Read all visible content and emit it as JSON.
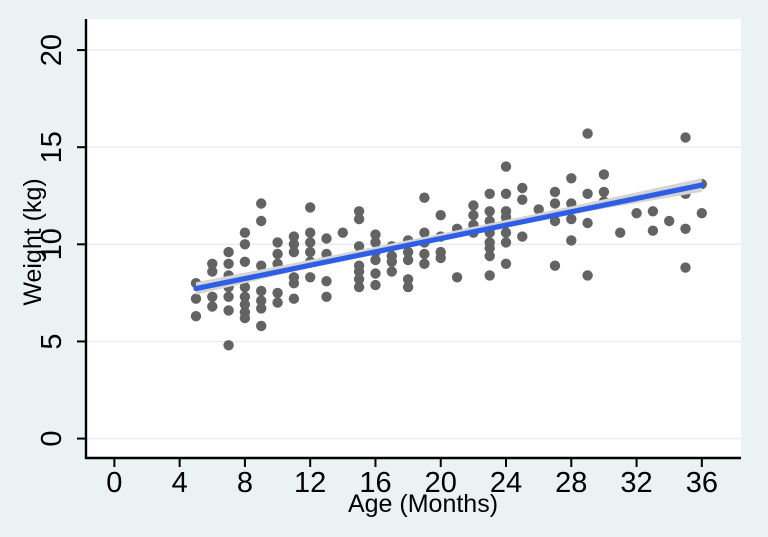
{
  "figure": {
    "background_color": "#EAF2F3",
    "plot_background": "#FFFFFF",
    "grid_color": "#E2EEF0",
    "axis_color": "#000000",
    "tick_label_color": "#000000"
  },
  "chart_data": {
    "type": "scatter",
    "title": "",
    "xlabel": "Age (Months)",
    "ylabel": "Weight (kg)",
    "x_ticks": [
      0,
      4,
      8,
      12,
      16,
      20,
      24,
      28,
      32,
      36
    ],
    "y_ticks": [
      0,
      5,
      10,
      15,
      20
    ],
    "xlim": [
      -1.8,
      38.4
    ],
    "ylim": [
      -1.0,
      21.6
    ],
    "grid": "horizontal-only",
    "legend": "none",
    "point_color": "#636363",
    "fit_line_color": "#2E5EE6",
    "ci_band_color": "#D4D4D4",
    "points": [
      [
        5,
        8.0
      ],
      [
        5,
        7.2
      ],
      [
        5,
        6.3
      ],
      [
        6,
        9.0
      ],
      [
        6,
        8.6
      ],
      [
        6,
        7.3
      ],
      [
        6,
        6.8
      ],
      [
        7,
        9.6
      ],
      [
        7,
        9.0
      ],
      [
        7,
        8.4
      ],
      [
        7,
        7.8
      ],
      [
        7,
        7.3
      ],
      [
        7,
        6.6
      ],
      [
        7,
        4.8
      ],
      [
        8,
        10.6
      ],
      [
        8,
        10.0
      ],
      [
        8,
        9.1
      ],
      [
        8,
        7.8
      ],
      [
        8,
        7.3
      ],
      [
        8,
        6.9
      ],
      [
        8,
        6.5
      ],
      [
        8,
        6.2
      ],
      [
        9,
        12.1
      ],
      [
        9,
        11.2
      ],
      [
        9,
        8.9
      ],
      [
        9,
        7.6
      ],
      [
        9,
        7.1
      ],
      [
        9,
        6.7
      ],
      [
        9,
        5.8
      ],
      [
        10,
        10.1
      ],
      [
        10,
        9.5
      ],
      [
        10,
        9.0
      ],
      [
        10,
        7.5
      ],
      [
        10,
        7.0
      ],
      [
        11,
        10.4
      ],
      [
        11,
        10.0
      ],
      [
        11,
        9.6
      ],
      [
        11,
        8.3
      ],
      [
        11,
        8.0
      ],
      [
        11,
        7.2
      ],
      [
        12,
        11.9
      ],
      [
        12,
        10.6
      ],
      [
        12,
        10.1
      ],
      [
        12,
        9.6
      ],
      [
        12,
        9.1
      ],
      [
        12,
        8.3
      ],
      [
        13,
        10.3
      ],
      [
        13,
        9.5
      ],
      [
        13,
        8.1
      ],
      [
        13,
        7.3
      ],
      [
        14,
        10.6
      ],
      [
        15,
        11.7
      ],
      [
        15,
        11.3
      ],
      [
        15,
        9.9
      ],
      [
        15,
        8.9
      ],
      [
        15,
        8.6
      ],
      [
        15,
        8.2
      ],
      [
        15,
        7.8
      ],
      [
        16,
        10.5
      ],
      [
        16,
        10.1
      ],
      [
        16,
        9.6
      ],
      [
        16,
        9.2
      ],
      [
        16,
        8.5
      ],
      [
        16,
        7.9
      ],
      [
        17,
        9.9
      ],
      [
        17,
        9.4
      ],
      [
        17,
        9.1
      ],
      [
        17,
        8.6
      ],
      [
        18,
        10.2
      ],
      [
        18,
        9.6
      ],
      [
        18,
        9.2
      ],
      [
        18,
        8.2
      ],
      [
        18,
        7.8
      ],
      [
        19,
        12.4
      ],
      [
        19,
        10.6
      ],
      [
        19,
        10.1
      ],
      [
        19,
        9.5
      ],
      [
        19,
        9.0
      ],
      [
        20,
        11.5
      ],
      [
        20,
        10.4
      ],
      [
        20,
        9.6
      ],
      [
        20,
        9.3
      ],
      [
        21,
        10.8
      ],
      [
        21,
        8.3
      ],
      [
        22,
        12.0
      ],
      [
        22,
        11.5
      ],
      [
        22,
        11.0
      ],
      [
        22,
        10.6
      ],
      [
        23,
        12.6
      ],
      [
        23,
        11.7
      ],
      [
        23,
        11.2
      ],
      [
        23,
        10.6
      ],
      [
        23,
        10.1
      ],
      [
        23,
        9.8
      ],
      [
        23,
        9.4
      ],
      [
        23,
        8.4
      ],
      [
        24,
        14.0
      ],
      [
        24,
        12.6
      ],
      [
        24,
        11.7
      ],
      [
        24,
        11.4
      ],
      [
        24,
        11.1
      ],
      [
        24,
        10.6
      ],
      [
        24,
        10.1
      ],
      [
        24,
        9.0
      ],
      [
        25,
        12.9
      ],
      [
        25,
        12.3
      ],
      [
        25,
        10.4
      ],
      [
        26,
        11.8
      ],
      [
        27,
        12.7
      ],
      [
        27,
        12.1
      ],
      [
        27,
        11.2
      ],
      [
        27,
        8.9
      ],
      [
        28,
        13.4
      ],
      [
        28,
        12.1
      ],
      [
        28,
        11.3
      ],
      [
        28,
        10.2
      ],
      [
        29,
        15.7
      ],
      [
        29,
        12.6
      ],
      [
        29,
        11.1
      ],
      [
        29,
        8.4
      ],
      [
        30,
        13.6
      ],
      [
        30,
        12.7
      ],
      [
        30,
        12.2
      ],
      [
        31,
        10.6
      ],
      [
        32,
        11.6
      ],
      [
        33,
        11.7
      ],
      [
        33,
        10.7
      ],
      [
        34,
        11.2
      ],
      [
        35,
        15.5
      ],
      [
        35,
        12.6
      ],
      [
        35,
        10.8
      ],
      [
        35,
        8.8
      ],
      [
        36,
        13.1
      ],
      [
        36,
        11.6
      ]
    ],
    "fit_line": {
      "x": [
        5,
        36
      ],
      "y": [
        7.72,
        13.05
      ]
    },
    "ci_band": {
      "x": [
        5,
        12,
        20,
        28,
        36
      ],
      "upper": [
        8.05,
        9.2,
        10.55,
        11.95,
        13.4
      ],
      "lower": [
        7.4,
        8.8,
        10.2,
        11.55,
        12.7
      ]
    }
  }
}
